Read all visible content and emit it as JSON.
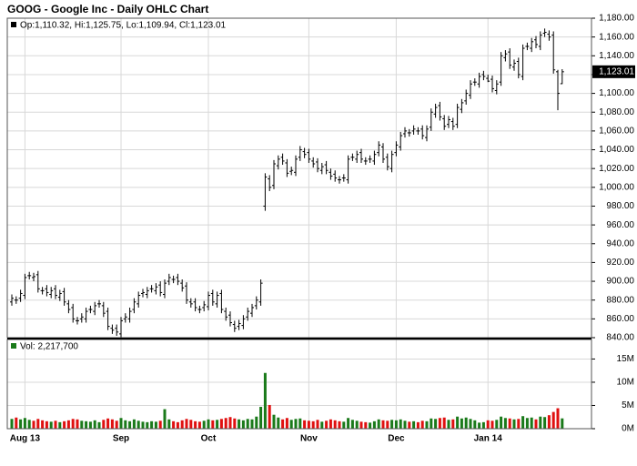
{
  "chart_data": [
    {
      "type": "ohlc",
      "title": "GOOG - Google Inc - Daily OHLC Chart",
      "legend_text": "Op:1,110.32, Hi:1,125.75, Lo:1,109.94, Cl:1,123.01",
      "last_price_label": "1,123.01",
      "color": "#000000",
      "grid": true,
      "ylim": [
        840,
        1180
      ],
      "yticks": [
        {
          "value": 840,
          "label": "840.00"
        },
        {
          "value": 860,
          "label": "860.00"
        },
        {
          "value": 880,
          "label": "880.00"
        },
        {
          "value": 900,
          "label": "900.00"
        },
        {
          "value": 920,
          "label": "920.00"
        },
        {
          "value": 940,
          "label": "940.00"
        },
        {
          "value": 960,
          "label": "960.00"
        },
        {
          "value": 980,
          "label": "980.00"
        },
        {
          "value": 1000,
          "label": "1,000.00"
        },
        {
          "value": 1020,
          "label": "1,020.00"
        },
        {
          "value": 1040,
          "label": "1,040.00"
        },
        {
          "value": 1060,
          "label": "1,060.00"
        },
        {
          "value": 1080,
          "label": "1,080.00"
        },
        {
          "value": 1100,
          "label": "1,100.00"
        },
        {
          "value": 1120,
          "label": "1,120.00"
        },
        {
          "value": 1140,
          "label": "1,140.00"
        },
        {
          "value": 1160,
          "label": "1,160.00"
        },
        {
          "value": 1180,
          "label": "1,180.00"
        }
      ],
      "open": [
        878,
        880,
        882,
        885,
        906,
        904,
        907,
        890,
        892,
        886,
        892,
        883,
        889,
        876,
        872,
        858,
        860,
        860,
        870,
        868,
        876,
        874,
        868,
        850,
        850,
        844,
        860,
        860,
        870,
        876,
        887,
        886,
        892,
        890,
        896,
        886,
        900,
        902,
        904,
        898,
        895,
        878,
        878,
        870,
        872,
        873,
        887,
        876,
        887,
        868,
        864,
        854,
        852,
        853,
        862,
        866,
        874,
        878,
        980,
        1009,
        1002,
        1023,
        1032,
        1026,
        1017,
        1016,
        1032,
        1038,
        1037,
        1028,
        1027,
        1018,
        1024,
        1016,
        1014,
        1008,
        1010,
        1008,
        1032,
        1030,
        1037,
        1028,
        1030,
        1028,
        1037,
        1043,
        1032,
        1020,
        1037,
        1043,
        1057,
        1058,
        1060,
        1060,
        1062,
        1053,
        1064,
        1078,
        1087,
        1073,
        1067,
        1070,
        1067,
        1083,
        1092,
        1098,
        1112,
        1110,
        1120,
        1116,
        1115,
        1103,
        1112,
        1138,
        1144,
        1128,
        1134,
        1118,
        1150,
        1148,
        1157,
        1150,
        1164,
        1163,
        1162,
        1123,
        1110.32
      ],
      "high": [
        886,
        884,
        891,
        908,
        910,
        909,
        911,
        894,
        896,
        894,
        896,
        891,
        893,
        880,
        876,
        862,
        866,
        872,
        874,
        878,
        880,
        878,
        872,
        854,
        854,
        862,
        866,
        872,
        882,
        889,
        892,
        894,
        896,
        898,
        900,
        902,
        908,
        906,
        908,
        902,
        899,
        882,
        882,
        874,
        879,
        889,
        891,
        889,
        891,
        872,
        868,
        858,
        859,
        864,
        872,
        876,
        884,
        902,
        1015,
        1013,
        1029,
        1034,
        1036,
        1030,
        1022,
        1034,
        1044,
        1042,
        1041,
        1032,
        1031,
        1026,
        1028,
        1020,
        1018,
        1012,
        1014,
        1034,
        1036,
        1039,
        1041,
        1032,
        1034,
        1039,
        1049,
        1047,
        1036,
        1039,
        1049,
        1059,
        1064,
        1062,
        1066,
        1064,
        1066,
        1066,
        1084,
        1089,
        1091,
        1077,
        1076,
        1074,
        1089,
        1094,
        1104,
        1114,
        1116,
        1122,
        1124,
        1120,
        1119,
        1114,
        1144,
        1146,
        1148,
        1136,
        1138,
        1152,
        1154,
        1159,
        1161,
        1166,
        1169,
        1167,
        1166,
        1125,
        1125.75
      ],
      "low": [
        874,
        876,
        878,
        881,
        902,
        900,
        888,
        886,
        884,
        882,
        881,
        879,
        874,
        866,
        856,
        854,
        856,
        856,
        866,
        864,
        872,
        862,
        848,
        844,
        842,
        840,
        856,
        856,
        866,
        872,
        883,
        882,
        888,
        886,
        884,
        882,
        896,
        898,
        896,
        889,
        876,
        872,
        868,
        866,
        868,
        869,
        874,
        872,
        866,
        858,
        852,
        846,
        848,
        849,
        858,
        862,
        870,
        874,
        975,
        996,
        998,
        1019,
        1024,
        1011,
        1013,
        1012,
        1028,
        1031,
        1026,
        1021,
        1016,
        1014,
        1014,
        1008,
        1006,
        1004,
        1006,
        1004,
        1028,
        1026,
        1026,
        1024,
        1026,
        1024,
        1033,
        1026,
        1018,
        1016,
        1033,
        1039,
        1053,
        1054,
        1056,
        1056,
        1051,
        1049,
        1060,
        1074,
        1071,
        1061,
        1063,
        1061,
        1063,
        1079,
        1088,
        1094,
        1108,
        1106,
        1114,
        1112,
        1101,
        1099,
        1108,
        1134,
        1126,
        1124,
        1116,
        1114,
        1146,
        1144,
        1148,
        1146,
        1160,
        1156,
        1121,
        1082,
        1109.94
      ],
      "close": [
        882,
        880,
        887,
        904,
        906,
        905,
        892,
        890,
        888,
        890,
        885,
        887,
        878,
        870,
        860,
        858,
        862,
        868,
        870,
        874,
        876,
        866,
        852,
        848,
        846,
        858,
        862,
        868,
        878,
        885,
        888,
        890,
        892,
        894,
        888,
        898,
        904,
        902,
        900,
        893,
        880,
        876,
        872,
        870,
        875,
        885,
        878,
        885,
        870,
        862,
        856,
        850,
        855,
        860,
        868,
        872,
        880,
        898,
        1011,
        1000,
        1025,
        1030,
        1028,
        1015,
        1018,
        1030,
        1040,
        1035,
        1030,
        1025,
        1020,
        1022,
        1018,
        1012,
        1010,
        1008,
        1010,
        1030,
        1032,
        1035,
        1030,
        1028,
        1030,
        1035,
        1045,
        1030,
        1022,
        1035,
        1045,
        1055,
        1060,
        1058,
        1062,
        1060,
        1055,
        1062,
        1080,
        1085,
        1075,
        1065,
        1072,
        1065,
        1085,
        1090,
        1100,
        1110,
        1112,
        1118,
        1118,
        1113,
        1105,
        1110,
        1140,
        1142,
        1130,
        1132,
        1120,
        1148,
        1150,
        1155,
        1152,
        1162,
        1165,
        1160,
        1125,
        1100,
        1123.01
      ]
    },
    {
      "type": "bar",
      "legend_text": "Vol: 2,217,700",
      "up_color": "#1a7a1a",
      "down_color": "#e01010",
      "grid": true,
      "ylim": [
        0,
        19200000
      ],
      "yticks": [
        {
          "value": 0,
          "label": "0M"
        },
        {
          "value": 5000000,
          "label": "5M"
        },
        {
          "value": 10000000,
          "label": "10M"
        },
        {
          "value": 15000000,
          "label": "15M"
        }
      ],
      "categories": [
        null,
        null,
        null,
        "Aug 13",
        null,
        null,
        null,
        null,
        null,
        null,
        null,
        null,
        null,
        null,
        null,
        null,
        null,
        null,
        null,
        null,
        null,
        null,
        null,
        null,
        null,
        "Sep",
        null,
        null,
        null,
        null,
        null,
        null,
        null,
        null,
        null,
        null,
        null,
        null,
        null,
        null,
        null,
        null,
        null,
        null,
        null,
        "Oct",
        null,
        null,
        null,
        null,
        null,
        null,
        null,
        null,
        null,
        null,
        null,
        null,
        null,
        null,
        null,
        null,
        null,
        null,
        null,
        null,
        null,
        null,
        "Nov",
        null,
        null,
        null,
        null,
        null,
        null,
        null,
        null,
        null,
        null,
        null,
        null,
        null,
        null,
        null,
        null,
        null,
        null,
        null,
        "Dec",
        null,
        null,
        null,
        null,
        null,
        null,
        null,
        null,
        null,
        null,
        null,
        null,
        null,
        null,
        null,
        null,
        null,
        null,
        null,
        null,
        "Jan 14",
        null,
        null,
        null,
        null,
        null,
        null,
        null,
        null,
        null,
        null,
        null,
        null,
        null,
        null,
        null,
        null,
        null
      ],
      "values": [
        2100000,
        2400000,
        2000000,
        2300000,
        1900000,
        1700000,
        2100000,
        1800000,
        1600000,
        1500000,
        1700000,
        1400000,
        1600000,
        1800000,
        2100000,
        2000000,
        1700000,
        1600000,
        1500000,
        1800000,
        1400000,
        1900000,
        2200000,
        2000000,
        1700000,
        2300000,
        1800000,
        1600000,
        2000000,
        1700000,
        1500000,
        1400000,
        1600000,
        1500000,
        1700000,
        4200000,
        2000000,
        1600000,
        1400000,
        1800000,
        2100000,
        1900000,
        1600000,
        1500000,
        1700000,
        2000000,
        1800000,
        1900000,
        2100000,
        2300000,
        2500000,
        2200000,
        2000000,
        1800000,
        2100000,
        2000000,
        2600000,
        4700000,
        12000000,
        5100000,
        3000000,
        2400000,
        2000000,
        2300000,
        1900000,
        2100000,
        2200000,
        1800000,
        1700000,
        1600000,
        1900000,
        1500000,
        1700000,
        2000000,
        1800000,
        1600000,
        1500000,
        2300000,
        1900000,
        1700000,
        1500000,
        1400000,
        1300000,
        1600000,
        2000000,
        1800000,
        1700000,
        1900000,
        1800000,
        2000000,
        1700000,
        1500000,
        1600000,
        1400000,
        1700000,
        1600000,
        2200000,
        2100000,
        2300000,
        2400000,
        1900000,
        2000000,
        2600000,
        2200000,
        2400000,
        2100000,
        1800000,
        1300000,
        1400000,
        1800000,
        1700000,
        1900000,
        2600000,
        2300000,
        2200000,
        2000000,
        2100000,
        2700000,
        2300000,
        2400000,
        2000000,
        2600000,
        2500000,
        2900000,
        3600000,
        4400000,
        2217700
      ]
    }
  ]
}
